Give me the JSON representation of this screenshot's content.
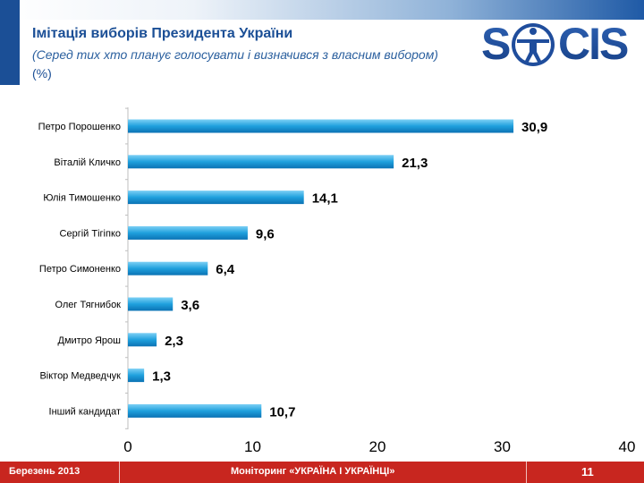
{
  "header": {
    "title": "Імітація виборів Президента України",
    "subtitle_italic": "(Серед тих хто планує голосувати і визначився з власним вибором)",
    "subtitle_unit": "(%)",
    "logo_text": "SOCIS"
  },
  "chart_data": {
    "type": "bar",
    "orientation": "horizontal",
    "categories": [
      "Петро Порошенко",
      "Віталій Кличко",
      "Юлія Тимошенко",
      "Сергій Тігіпко",
      "Петро Симоненко",
      "Олег Тягнибок",
      "Дмитро Ярош",
      "Віктор Медведчук",
      "Інший кандидат"
    ],
    "values": [
      30.9,
      21.3,
      14.1,
      9.6,
      6.4,
      3.6,
      2.3,
      1.3,
      10.7
    ],
    "value_labels": [
      "30,9",
      "21,3",
      "14,1",
      "9,6",
      "6,4",
      "3,6",
      "2,3",
      "1,3",
      "10,7"
    ],
    "xlim": [
      0,
      40
    ],
    "xticks": [
      0,
      10,
      20,
      30,
      40
    ],
    "bar_color": "#1fa0dd",
    "title": "",
    "xlabel": "",
    "ylabel": ""
  },
  "footer": {
    "date": "Березень 2013",
    "center": "Моніторинг «УКРАЇНА І УКРАЇНЦІ»",
    "page": "11",
    "color": "#c8261f"
  }
}
